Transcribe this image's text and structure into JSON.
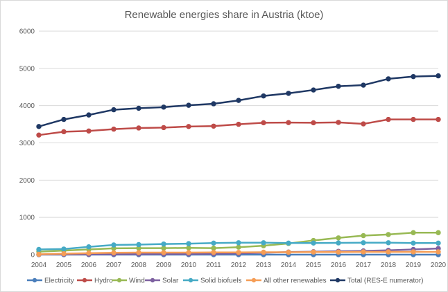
{
  "chart_data": {
    "type": "line",
    "title": "Renewable energies share in Austria (ktoe)",
    "xlabel": "",
    "ylabel": "",
    "ylim": [
      0,
      6000
    ],
    "yticks": [
      0,
      1000,
      2000,
      3000,
      4000,
      5000,
      6000
    ],
    "grid": true,
    "legend_position": "bottom",
    "x": [
      "2004",
      "2005",
      "2006",
      "2007",
      "2008",
      "2009",
      "2010",
      "2011",
      "2012",
      "2013",
      "2014",
      "2015",
      "2016",
      "2017",
      "2018",
      "2019",
      "2020"
    ],
    "series": [
      {
        "name": "Electricity",
        "color": "#4a7ebb",
        "values": [
          0,
          0,
          0,
          0,
          0,
          0,
          0,
          0,
          0,
          0,
          0,
          0,
          0,
          0,
          0,
          0,
          0
        ]
      },
      {
        "name": "Hydro",
        "color": "#be4b48",
        "values": [
          3210,
          3300,
          3320,
          3370,
          3400,
          3410,
          3440,
          3450,
          3500,
          3540,
          3545,
          3540,
          3550,
          3510,
          3630,
          3630,
          3630
        ]
      },
      {
        "name": "Wind",
        "color": "#98b954",
        "values": [
          80,
          110,
          140,
          170,
          175,
          175,
          180,
          175,
          200,
          240,
          300,
          380,
          450,
          510,
          540,
          590,
          590
        ]
      },
      {
        "name": "Solar",
        "color": "#7d60a0",
        "values": [
          5,
          8,
          10,
          12,
          15,
          18,
          20,
          25,
          35,
          50,
          70,
          80,
          90,
          100,
          115,
          140,
          165
        ]
      },
      {
        "name": "Solid biofuels",
        "color": "#46aac5",
        "values": [
          140,
          150,
          210,
          260,
          270,
          285,
          295,
          310,
          320,
          320,
          310,
          310,
          315,
          320,
          320,
          310,
          310
        ]
      },
      {
        "name": "All other renewables",
        "color": "#f59d56",
        "values": [
          10,
          25,
          40,
          50,
          55,
          55,
          55,
          60,
          60,
          65,
          65,
          70,
          70,
          75,
          75,
          75,
          75
        ]
      },
      {
        "name": "Total (RES-E numerator)",
        "color": "#1f3864",
        "values": [
          3440,
          3630,
          3750,
          3890,
          3930,
          3960,
          4010,
          4050,
          4140,
          4260,
          4330,
          4420,
          4520,
          4550,
          4720,
          4780,
          4800
        ]
      }
    ]
  }
}
